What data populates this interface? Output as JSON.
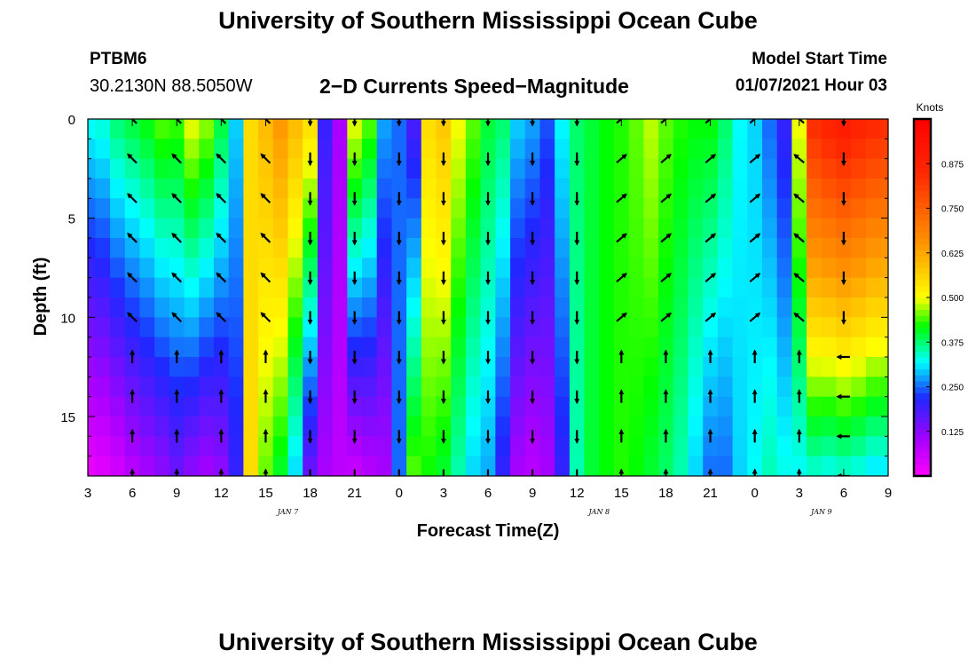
{
  "header": {
    "title": "University of Southern Mississippi Ocean Cube",
    "station_id": "PTBM6",
    "coords": "30.2130N 88.5050W",
    "subtitle": "2−D Currents Speed−Magnitude",
    "model_start_label": "Model Start Time",
    "model_start_value": "01/07/2021 Hour 03"
  },
  "footer": {
    "title": "University of Southern Mississippi Ocean Cube"
  },
  "chart_data": {
    "type": "heatmap",
    "xlabel": "Forecast Time(Z)",
    "ylabel": "Depth (ft)",
    "x_tick_labels": [
      "3",
      "6",
      "9",
      "12",
      "15",
      "18",
      "21",
      "0",
      "3",
      "6",
      "9",
      "12",
      "15",
      "18",
      "21",
      "0",
      "3",
      "6",
      "9"
    ],
    "day_labels": [
      {
        "label": "JAN 7",
        "tick_index": 4
      },
      {
        "label": "JAN 8",
        "tick_index": 11
      },
      {
        "label": "JAN 9",
        "tick_index": 16
      }
    ],
    "y_tick_labels": [
      "0",
      "5",
      "10",
      "15"
    ],
    "y_ticks": [
      0,
      5,
      10,
      15
    ],
    "ylim": [
      0,
      18
    ],
    "x_hours": [
      0,
      54
    ],
    "colorbar": {
      "label": "Knots",
      "ticks": [
        0.125,
        0.25,
        0.375,
        0.5,
        0.625,
        0.75,
        0.875
      ],
      "tick_labels": [
        "0.125",
        "0.250",
        "0.375",
        "0.500",
        "0.625",
        "0.750",
        "0.875"
      ],
      "range": [
        0,
        1
      ]
    },
    "speed_profile": {
      "description": "speed in knots by forecast hour at surface (top) and bottom",
      "hours": [
        0,
        1,
        2,
        3,
        4,
        5,
        6,
        7,
        8,
        9,
        10,
        11,
        12,
        13,
        14,
        15,
        16,
        17,
        18,
        19,
        20,
        21,
        22,
        23,
        24,
        25,
        26,
        27,
        28,
        29,
        30,
        31,
        32,
        33,
        34,
        35,
        36,
        37,
        38,
        39,
        40,
        41,
        42,
        43,
        44,
        45,
        46,
        47,
        48,
        49,
        50,
        51,
        52,
        53,
        54
      ],
      "top": [
        0.33,
        0.34,
        0.38,
        0.4,
        0.42,
        0.45,
        0.44,
        0.5,
        0.47,
        0.4,
        0.3,
        0.55,
        0.6,
        0.65,
        0.6,
        0.55,
        0.2,
        0.1,
        0.5,
        0.45,
        0.28,
        0.25,
        0.18,
        0.55,
        0.58,
        0.5,
        0.45,
        0.4,
        0.38,
        0.3,
        0.28,
        0.24,
        0.32,
        0.38,
        0.4,
        0.42,
        0.43,
        0.45,
        0.48,
        0.45,
        0.43,
        0.42,
        0.42,
        0.38,
        0.32,
        0.3,
        0.25,
        0.2,
        0.5,
        0.85,
        0.88,
        0.9,
        0.88,
        0.86,
        0.85
      ],
      "bottom": [
        0.02,
        0.03,
        0.05,
        0.08,
        0.1,
        0.12,
        0.15,
        0.12,
        0.1,
        0.12,
        0.2,
        0.55,
        0.45,
        0.4,
        0.3,
        0.15,
        0.1,
        0.08,
        0.06,
        0.08,
        0.1,
        0.25,
        0.45,
        0.42,
        0.4,
        0.35,
        0.3,
        0.28,
        0.2,
        0.1,
        0.08,
        0.1,
        0.2,
        0.35,
        0.4,
        0.42,
        0.43,
        0.42,
        0.4,
        0.38,
        0.35,
        0.3,
        0.25,
        0.25,
        0.3,
        0.32,
        0.35,
        0.33,
        0.32,
        0.33,
        0.32,
        0.33,
        0.32,
        0.3,
        0.3
      ]
    },
    "arrow_grid": {
      "hours": [
        3,
        6,
        9,
        12,
        15,
        18,
        21,
        24,
        27,
        30,
        33,
        36,
        39,
        42,
        45,
        48,
        51
      ],
      "depths": [
        0,
        2,
        4,
        6,
        8,
        10,
        12,
        14,
        16,
        18
      ]
    }
  }
}
